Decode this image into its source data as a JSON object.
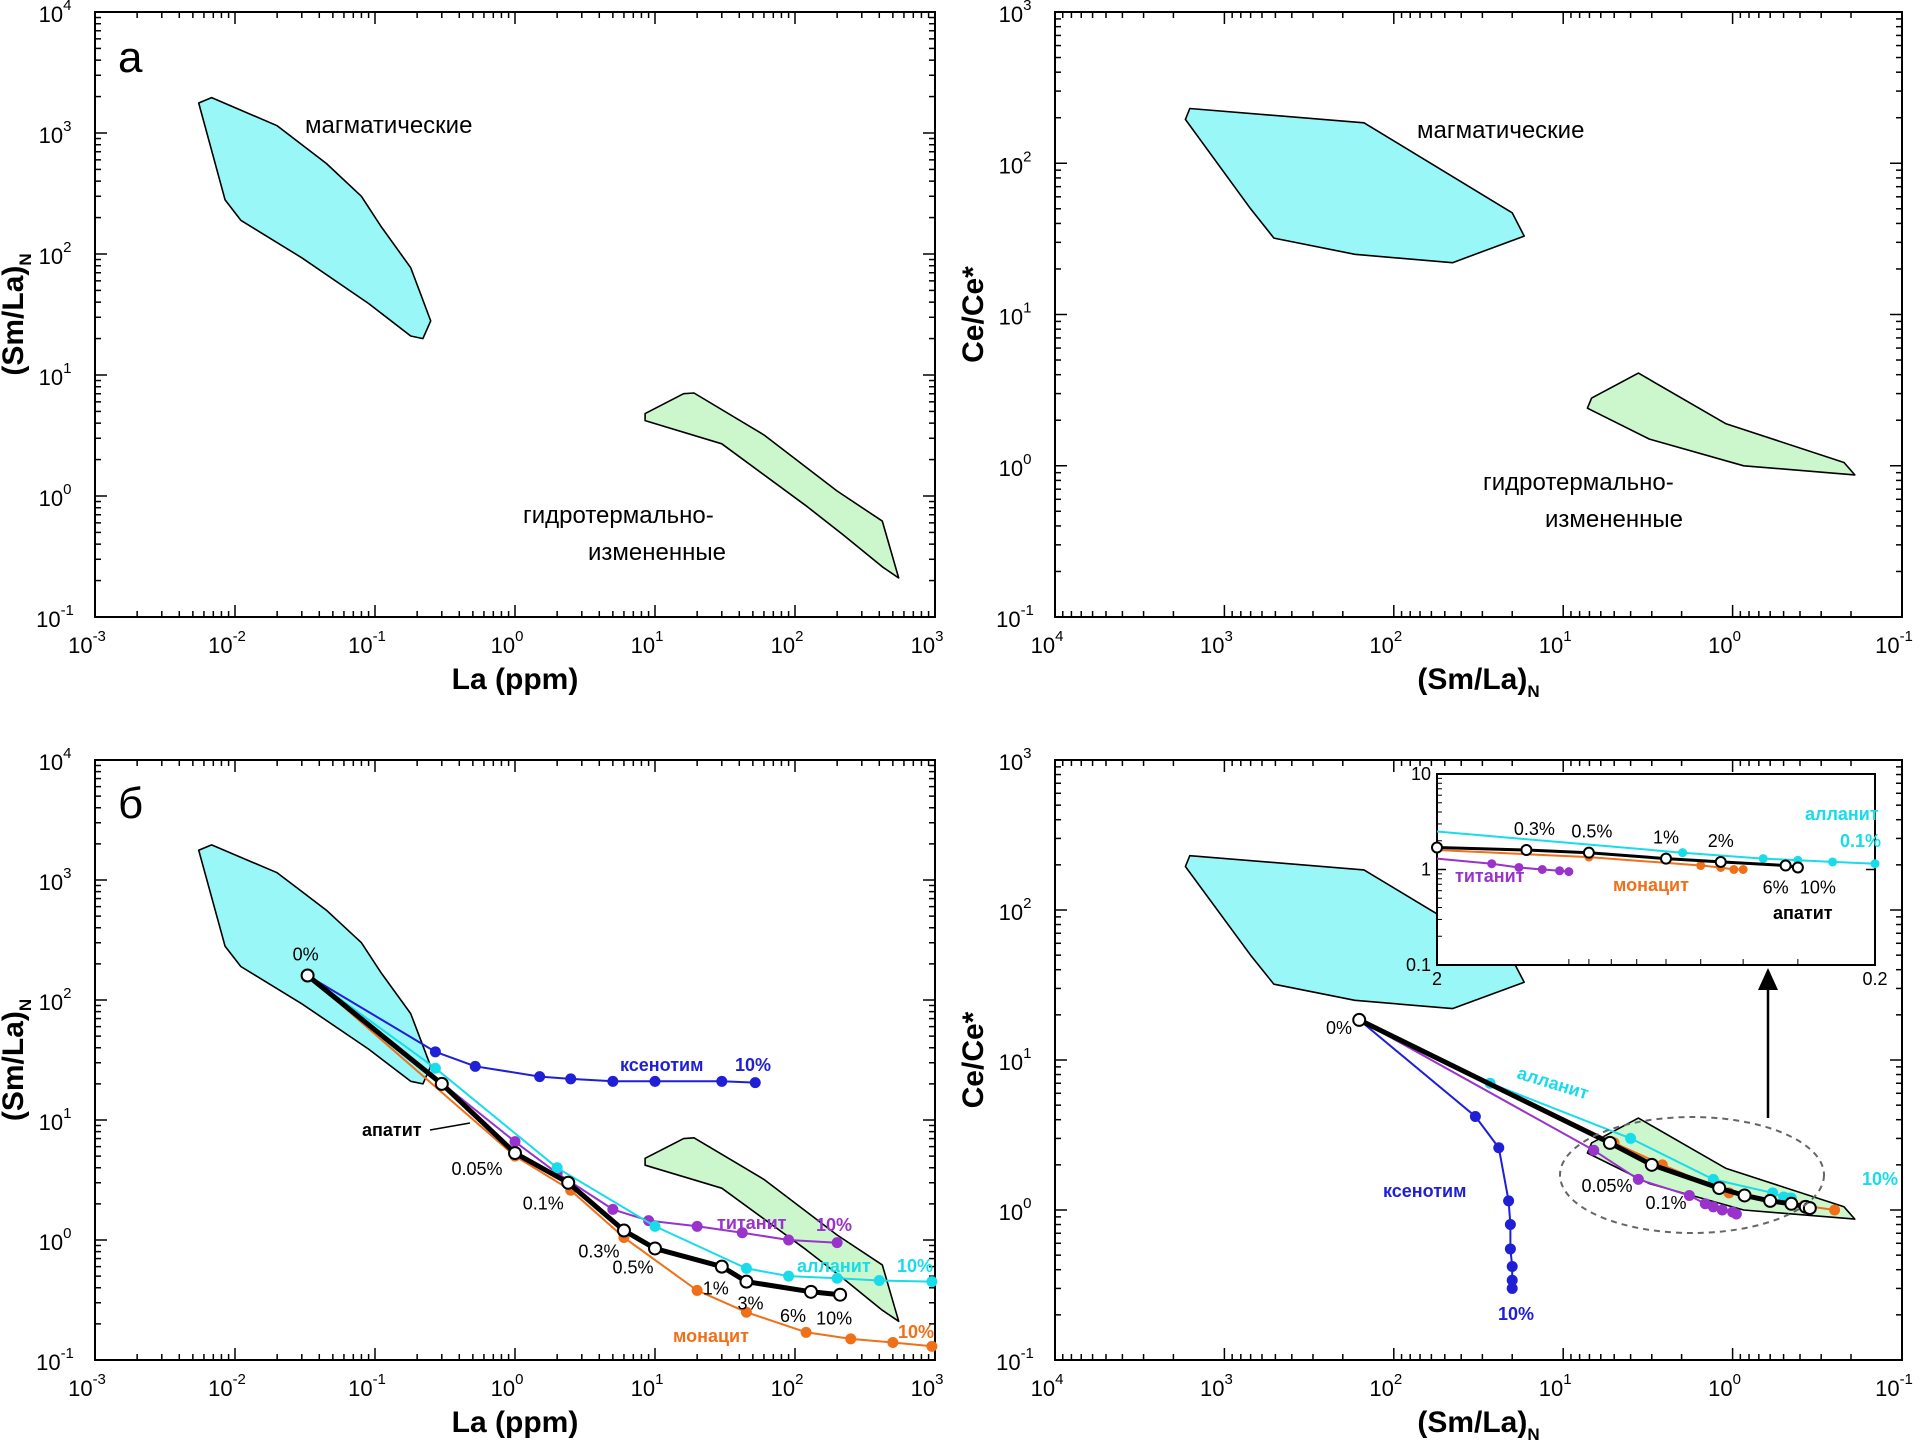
{
  "figure": {
    "colors": {
      "igneous_fill": "#99f7f7",
      "hydro_fill": "#ccf7cc",
      "apatite": "#000000",
      "xenotime": "#1f1fd6",
      "titanite": "#9933cc",
      "allanite": "#19dcea",
      "monazite": "#f07019"
    }
  },
  "chart_data": [
    {
      "panel": "a",
      "type": "scatter",
      "panel_label": "а",
      "xlabel": "La (ppm)",
      "ylabel": "(Sm/La)",
      "ylabel_sub": "N",
      "xscale": "log",
      "yscale": "log",
      "xlim": [
        0.001,
        1000
      ],
      "ylim": [
        0.1,
        10000
      ],
      "xticks": [
        {
          "b": "10",
          "e": "-3"
        },
        {
          "b": "10",
          "e": "-2"
        },
        {
          "b": "10",
          "e": "-1"
        },
        {
          "b": "10",
          "e": "0"
        },
        {
          "b": "10",
          "e": "1"
        },
        {
          "b": "10",
          "e": "2"
        },
        {
          "b": "10",
          "e": "3"
        }
      ],
      "yticks": [
        {
          "b": "10",
          "e": "-1"
        },
        {
          "b": "10",
          "e": "0"
        },
        {
          "b": "10",
          "e": "1"
        },
        {
          "b": "10",
          "e": "2"
        },
        {
          "b": "10",
          "e": "3"
        },
        {
          "b": "10",
          "e": "4"
        }
      ],
      "regions": [
        {
          "name": "магматические",
          "label": "магматические",
          "points": [
            [
              0.0068,
              1960
            ],
            [
              0.02,
              1150
            ],
            [
              0.045,
              560
            ],
            [
              0.08,
              300
            ],
            [
              0.11,
              170
            ],
            [
              0.18,
              77
            ],
            [
              0.21,
              48
            ],
            [
              0.25,
              28
            ],
            [
              0.22,
              20
            ],
            [
              0.18,
              21
            ],
            [
              0.09,
              39
            ],
            [
              0.03,
              93
            ],
            [
              0.011,
              190
            ],
            [
              0.0085,
              280
            ],
            [
              0.0055,
              1770
            ]
          ]
        },
        {
          "name": "гидротермально-измененные",
          "label_lines": [
            "гидротермально-",
            "измененные"
          ],
          "points": [
            [
              19,
              7.1
            ],
            [
              60,
              3.2
            ],
            [
              200,
              1.1
            ],
            [
              420,
              0.62
            ],
            [
              550,
              0.21
            ],
            [
              420,
              0.26
            ],
            [
              220,
              0.48
            ],
            [
              120,
              0.83
            ],
            [
              30,
              2.7
            ],
            [
              8.5,
              4.2
            ],
            [
              8.5,
              4.8
            ],
            [
              16,
              7.0
            ]
          ]
        }
      ],
      "grid": false
    },
    {
      "panel": "b",
      "type": "scatter",
      "xlabel": "(Sm/La)",
      "xlabel_sub": "N",
      "ylabel": "Ce/Ce*",
      "xscale": "log",
      "yscale": "log",
      "x_reversed": true,
      "xlim": [
        10000,
        0.1
      ],
      "ylim": [
        0.1,
        1000
      ],
      "xticks": [
        {
          "b": "10",
          "e": "4"
        },
        {
          "b": "10",
          "e": "3"
        },
        {
          "b": "10",
          "e": "2"
        },
        {
          "b": "10",
          "e": "1"
        },
        {
          "b": "10",
          "e": "0"
        },
        {
          "b": "10",
          "e": "-1"
        }
      ],
      "yticks": [
        {
          "b": "10",
          "e": "-1"
        },
        {
          "b": "10",
          "e": "0"
        },
        {
          "b": "10",
          "e": "1"
        },
        {
          "b": "10",
          "e": "2"
        },
        {
          "b": "10",
          "e": "3"
        }
      ],
      "regions": [
        {
          "name": "магматические",
          "label": "магматические",
          "points": [
            [
              1600,
              230
            ],
            [
              150,
              185
            ],
            [
              20,
              47
            ],
            [
              17,
              33
            ],
            [
              45,
              22
            ],
            [
              170,
              25
            ],
            [
              510,
              32
            ],
            [
              700,
              50
            ],
            [
              1700,
              195
            ]
          ]
        },
        {
          "name": "гидротермально-измененные",
          "label_lines": [
            "гидротермально-",
            "измененные"
          ],
          "points": [
            [
              3.6,
              4.1
            ],
            [
              1.1,
              1.9
            ],
            [
              0.22,
              1.05
            ],
            [
              0.19,
              0.87
            ],
            [
              0.86,
              1.0
            ],
            [
              3.1,
              1.5
            ],
            [
              7.2,
              2.4
            ],
            [
              6.8,
              2.8
            ]
          ]
        }
      ],
      "grid": false
    },
    {
      "panel": "c",
      "type": "line",
      "panel_label": "б",
      "xlabel": "La (ppm)",
      "ylabel": "(Sm/La)",
      "ylabel_sub": "N",
      "xscale": "log",
      "yscale": "log",
      "xlim": [
        0.001,
        1000
      ],
      "ylim": [
        0.1,
        10000
      ],
      "xticks": [
        {
          "b": "10",
          "e": "-3"
        },
        {
          "b": "10",
          "e": "-2"
        },
        {
          "b": "10",
          "e": "-1"
        },
        {
          "b": "10",
          "e": "0"
        },
        {
          "b": "10",
          "e": "1"
        },
        {
          "b": "10",
          "e": "2"
        },
        {
          "b": "10",
          "e": "3"
        }
      ],
      "yticks": [
        {
          "b": "10",
          "e": "-1"
        },
        {
          "b": "10",
          "e": "0"
        },
        {
          "b": "10",
          "e": "1"
        },
        {
          "b": "10",
          "e": "2"
        },
        {
          "b": "10",
          "e": "3"
        },
        {
          "b": "10",
          "e": "4"
        }
      ],
      "regions": [
        {
          "name": "магматические",
          "points": [
            [
              0.0068,
              1960
            ],
            [
              0.02,
              1150
            ],
            [
              0.045,
              560
            ],
            [
              0.08,
              300
            ],
            [
              0.11,
              170
            ],
            [
              0.18,
              77
            ],
            [
              0.21,
              48
            ],
            [
              0.25,
              28
            ],
            [
              0.22,
              20
            ],
            [
              0.18,
              21
            ],
            [
              0.09,
              39
            ],
            [
              0.03,
              93
            ],
            [
              0.011,
              190
            ],
            [
              0.0085,
              280
            ],
            [
              0.0055,
              1770
            ]
          ]
        },
        {
          "name": "гидротермально-измененные",
          "points": [
            [
              19,
              7.1
            ],
            [
              60,
              3.2
            ],
            [
              200,
              1.1
            ],
            [
              420,
              0.62
            ],
            [
              550,
              0.21
            ],
            [
              420,
              0.26
            ],
            [
              220,
              0.48
            ],
            [
              120,
              0.83
            ],
            [
              30,
              2.7
            ],
            [
              8.5,
              4.2
            ],
            [
              8.5,
              4.8
            ],
            [
              16,
              7.0
            ]
          ]
        }
      ],
      "series": [
        {
          "name": "ксенотим",
          "color": "#1f1fd6",
          "label": "ксенотим",
          "end_label": "10%",
          "x": [
            0.033,
            0.27,
            0.52,
            1.5,
            2.5,
            5,
            10,
            30,
            52
          ],
          "y": [
            160,
            37,
            28,
            23,
            22,
            21,
            21,
            21,
            20.5
          ]
        },
        {
          "name": "титанит",
          "color": "#9933cc",
          "label": "титанит",
          "end_label": "10%",
          "x": [
            0.033,
            1.0,
            2.0,
            5,
            9,
            20,
            42,
            90,
            200
          ],
          "y": [
            160,
            6.6,
            3.6,
            1.8,
            1.45,
            1.3,
            1.15,
            1.0,
            0.95
          ]
        },
        {
          "name": "алланит",
          "color": "#19dcea",
          "label": "алланит",
          "end_label": "10%",
          "x": [
            0.033,
            0.27,
            2.0,
            10,
            45,
            90,
            200,
            400,
            950
          ],
          "y": [
            160,
            27,
            4.0,
            1.3,
            0.58,
            0.5,
            0.48,
            0.46,
            0.45
          ]
        },
        {
          "name": "монацит",
          "color": "#f07019",
          "label": "монацит",
          "end_label": "10%",
          "x": [
            0.033,
            1.0,
            2.5,
            6,
            20,
            45,
            120,
            250,
            500,
            950
          ],
          "y": [
            160,
            5.0,
            2.6,
            1.05,
            0.38,
            0.25,
            0.17,
            0.15,
            0.14,
            0.13
          ]
        },
        {
          "name": "апатит",
          "color": "#000000",
          "label": "апатит",
          "x": [
            0.033,
            0.3,
            1.0,
            2.4,
            6,
            10,
            30,
            45,
            130,
            210
          ],
          "y": [
            160,
            20,
            5.3,
            3.0,
            1.2,
            0.85,
            0.6,
            0.45,
            0.37,
            0.35
          ],
          "point_labels": [
            "0%",
            "",
            "0.05%",
            "0.1%",
            "0.3%",
            "0.5%",
            "1%",
            "3%",
            "6%",
            "10%"
          ]
        }
      ],
      "grid": false
    },
    {
      "panel": "d",
      "type": "line",
      "xlabel": "(Sm/La)",
      "xlabel_sub": "N",
      "ylabel": "Ce/Ce*",
      "xscale": "log",
      "yscale": "log",
      "x_reversed": true,
      "xlim": [
        10000,
        0.1
      ],
      "ylim": [
        0.1,
        1000
      ],
      "xticks": [
        {
          "b": "10",
          "e": "4"
        },
        {
          "b": "10",
          "e": "3"
        },
        {
          "b": "10",
          "e": "2"
        },
        {
          "b": "10",
          "e": "1"
        },
        {
          "b": "10",
          "e": "0"
        },
        {
          "b": "10",
          "e": "-1"
        }
      ],
      "yticks": [
        {
          "b": "10",
          "e": "-1"
        },
        {
          "b": "10",
          "e": "0"
        },
        {
          "b": "10",
          "e": "1"
        },
        {
          "b": "10",
          "e": "2"
        },
        {
          "b": "10",
          "e": "3"
        }
      ],
      "regions": [
        {
          "name": "магматические",
          "points": [
            [
              1600,
              230
            ],
            [
              150,
              185
            ],
            [
              20,
              47
            ],
            [
              17,
              33
            ],
            [
              45,
              22
            ],
            [
              170,
              25
            ],
            [
              510,
              32
            ],
            [
              700,
              50
            ],
            [
              1700,
              195
            ]
          ]
        },
        {
          "name": "гидротермально-измененные",
          "points": [
            [
              3.6,
              4.1
            ],
            [
              1.1,
              1.9
            ],
            [
              0.22,
              1.05
            ],
            [
              0.19,
              0.87
            ],
            [
              0.86,
              1.0
            ],
            [
              3.1,
              1.5
            ],
            [
              7.2,
              2.4
            ],
            [
              6.8,
              2.8
            ]
          ]
        }
      ],
      "series": [
        {
          "name": "ксенотим",
          "color": "#1f1fd6",
          "label": "ксенотим",
          "end_label": "10%",
          "x": [
            160,
            33,
            24,
            21,
            20.5,
            20.5,
            20,
            20,
            20
          ],
          "y": [
            18.5,
            4.2,
            2.6,
            1.15,
            0.8,
            0.55,
            0.42,
            0.34,
            0.3
          ]
        },
        {
          "name": "титанит",
          "color": "#9933cc",
          "x": [
            160,
            6.6,
            3.6,
            1.8,
            1.45,
            1.3,
            1.15,
            1.0,
            0.95
          ],
          "y": [
            18.5,
            2.5,
            1.6,
            1.25,
            1.1,
            1.05,
            1.0,
            0.97,
            0.94
          ]
        },
        {
          "name": "алланит",
          "color": "#19dcea",
          "label": "алланит",
          "end_label": "10%",
          "x": [
            160,
            27,
            4.0,
            1.3,
            0.58,
            0.5,
            0.48,
            0.46,
            0.45
          ],
          "y": [
            18.5,
            7.0,
            3.0,
            1.6,
            1.3,
            1.22,
            1.2,
            1.2,
            1.2
          ]
        },
        {
          "name": "монацит",
          "color": "#f07019",
          "x": [
            160,
            5.0,
            2.6,
            1.05,
            0.38,
            0.25
          ],
          "y": [
            18.5,
            2.8,
            2.0,
            1.3,
            1.07,
            1.0
          ]
        },
        {
          "name": "апатит",
          "color": "#000000",
          "x": [
            160,
            5.3,
            3.0,
            1.2,
            0.85,
            0.6,
            0.45,
            0.37,
            0.35
          ],
          "y": [
            18.5,
            2.8,
            2.0,
            1.4,
            1.25,
            1.15,
            1.1,
            1.05,
            1.03
          ],
          "point_labels": [
            "0%",
            "0.05%",
            "0.1%",
            "",
            "",
            "",
            "",
            "",
            ""
          ]
        }
      ],
      "inset": {
        "xlim": [
          2,
          0.2
        ],
        "ylim": [
          0.1,
          10
        ],
        "xticks": [
          "2",
          "0.2"
        ],
        "yticks": [
          "0.1",
          "1",
          "10"
        ],
        "series": [
          {
            "name": "алланит",
            "color": "#19dcea",
            "label": "алланит",
            "end_label": "0.1%",
            "x": [
              2.0,
              0.55,
              0.36,
              0.3,
              0.25,
              0.2
            ],
            "y": [
              2.5,
              1.5,
              1.3,
              1.25,
              1.2,
              1.15
            ]
          },
          {
            "name": "титанит",
            "color": "#9933cc",
            "label": "титанит",
            "x": [
              2.0,
              1.5,
              1.3,
              1.15,
              1.05,
              1.0
            ],
            "y": [
              1.3,
              1.15,
              1.05,
              1.0,
              0.97,
              0.95
            ]
          },
          {
            "name": "монацит",
            "color": "#f07019",
            "label": "монацит",
            "x": [
              2.0,
              0.9,
              0.5,
              0.45,
              0.42,
              0.4
            ],
            "y": [
              1.6,
              1.35,
              1.1,
              1.05,
              1.0,
              1.0
            ]
          },
          {
            "name": "апатит",
            "color": "#000000",
            "label": "апатит",
            "x": [
              2.0,
              1.25,
              0.9,
              0.6,
              0.45,
              0.32,
              0.3
            ],
            "y": [
              1.7,
              1.6,
              1.5,
              1.3,
              1.2,
              1.1,
              1.05
            ],
            "point_labels": [
              "",
              "0.3%",
              "0.5%",
              "1%",
              "2%",
              "6%",
              "10%"
            ]
          }
        ]
      },
      "grid": false
    }
  ]
}
